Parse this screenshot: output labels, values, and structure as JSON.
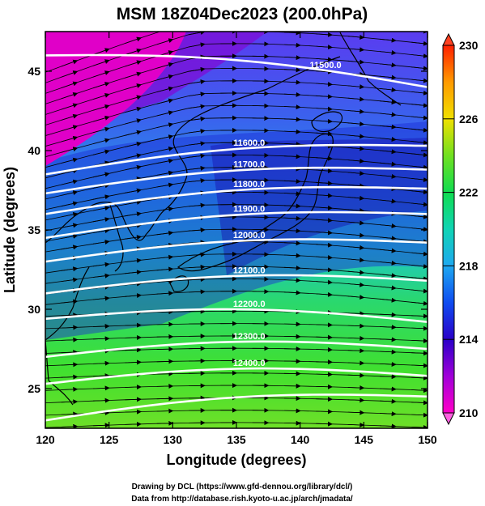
{
  "title": "MSM 18Z04Dec2023 (200.0hPa)",
  "xaxis": {
    "label": "Longitude (degrees)",
    "range": [
      120,
      150
    ],
    "ticks": [
      "120",
      "125",
      "130",
      "135",
      "140",
      "145",
      "150"
    ]
  },
  "yaxis": {
    "label": "Latitude  (degrees)",
    "range": [
      22.5,
      47.5
    ],
    "ticks": [
      "25",
      "30",
      "35",
      "40",
      "45"
    ]
  },
  "colorbar": {
    "range": [
      210,
      230
    ],
    "ticks": [
      "210",
      "214",
      "218",
      "222",
      "226",
      "230"
    ]
  },
  "contours": [
    {
      "label": "11500.0",
      "lat_west": 46.0,
      "lat_east": 44.0
    },
    {
      "label": "11600.0",
      "lat_west": 38.5,
      "lat_east": 40.3
    },
    {
      "label": "11700.0",
      "lat_west": 37.3,
      "lat_east": 38.8
    },
    {
      "label": "11800.0",
      "lat_west": 36.0,
      "lat_east": 37.6
    },
    {
      "label": "11900.0",
      "lat_west": 34.5,
      "lat_east": 36.0
    },
    {
      "label": "12000.0",
      "lat_west": 33.0,
      "lat_east": 34.2
    },
    {
      "label": "12100.0",
      "lat_west": 31.0,
      "lat_east": 31.8
    },
    {
      "label": "12200.0",
      "lat_west": 29.4,
      "lat_east": 29.2
    },
    {
      "label": "12300.0",
      "lat_west": 27.0,
      "lat_east": 27.5
    },
    {
      "label": "12400.0",
      "lat_west": 25.3,
      "lat_east": 25.8
    },
    {
      "label": "",
      "lat_west": 23.0,
      "lat_east": 24.5
    }
  ],
  "credits": [
    "Drawing by DCL (https://www.gfd-dennou.org/library/dcl/)",
    "Data from http://database.rish.kyoto-u.ac.jp/arch/jmadata/"
  ]
}
